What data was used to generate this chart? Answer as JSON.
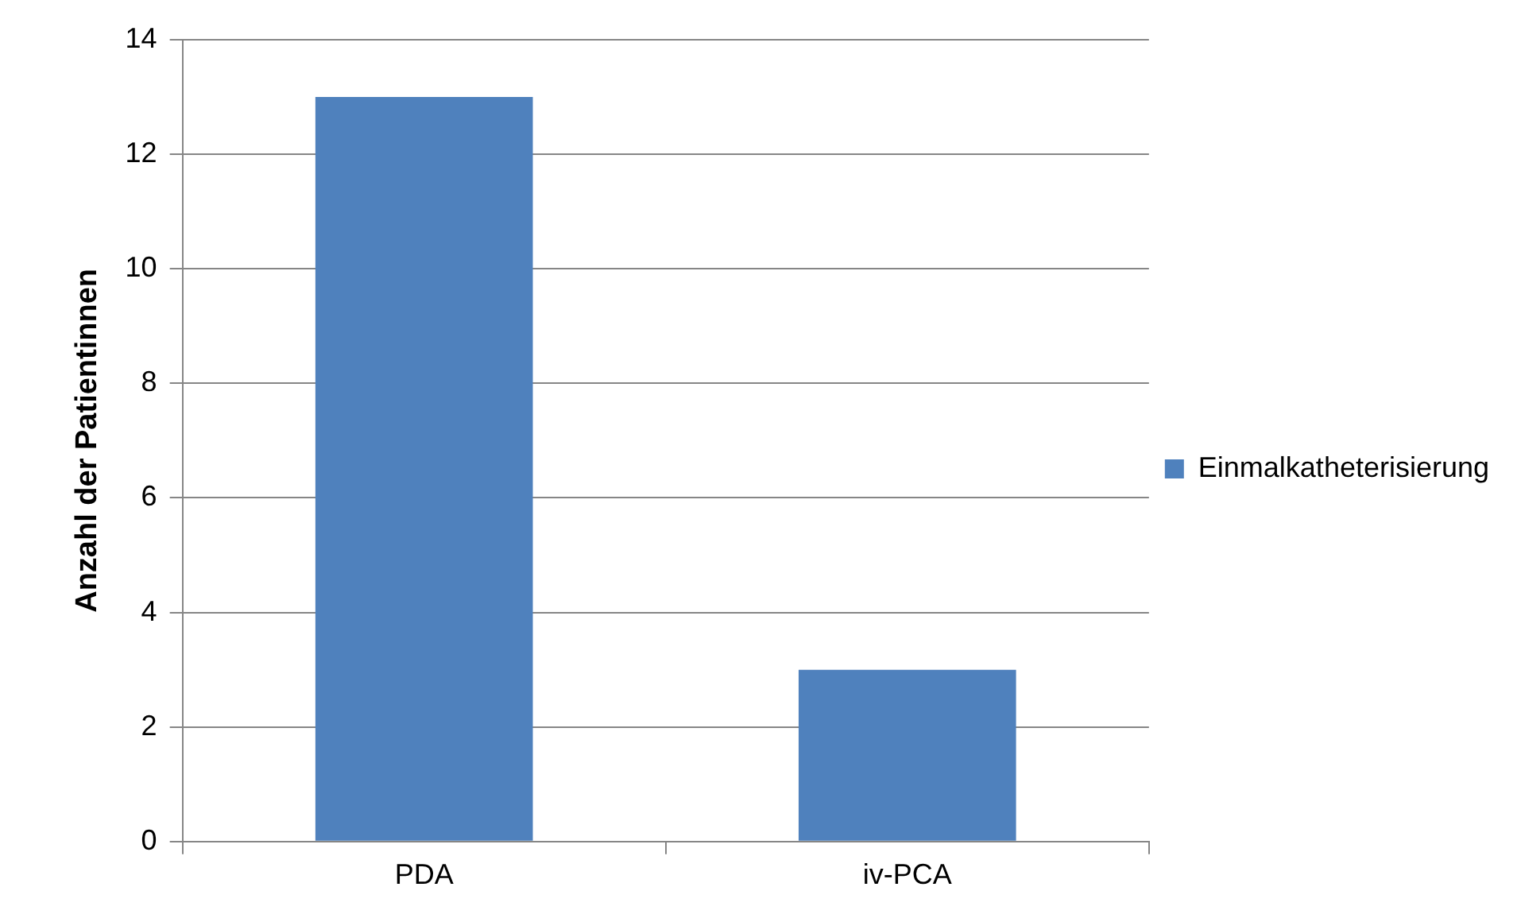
{
  "chart_data": {
    "type": "bar",
    "ylabel": "Anzahl der Patientinnen",
    "categories": [
      "PDA",
      "iv-PCA"
    ],
    "series": [
      {
        "name": "Einmalkatheterisierung",
        "color": "#4f81bd",
        "values": [
          13,
          3
        ]
      }
    ],
    "ylim": [
      0,
      14
    ],
    "yticks": [
      0,
      2,
      4,
      6,
      8,
      10,
      12,
      14
    ],
    "grid": "y",
    "legend": "right"
  }
}
